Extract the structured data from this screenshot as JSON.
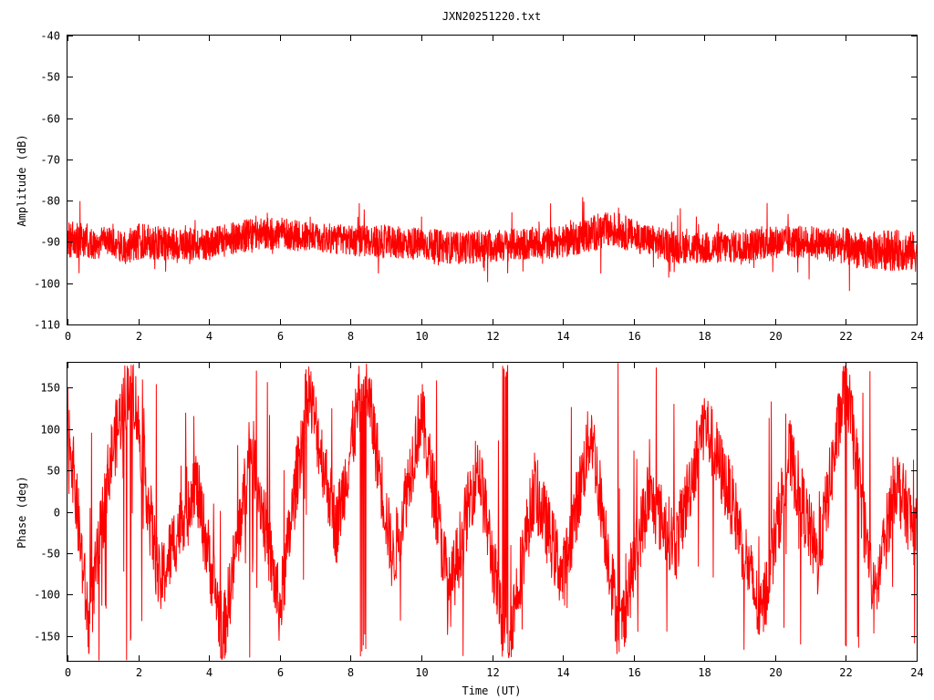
{
  "chart_data": [
    {
      "type": "line",
      "title": "JXN20251220.txt",
      "xlabel": "",
      "ylabel": "Amplitude (dB)",
      "xlim": [
        0,
        24
      ],
      "ylim": [
        -110,
        -40
      ],
      "xticks": [
        "0",
        "2",
        "4",
        "6",
        "8",
        "10",
        "12",
        "14",
        "16",
        "18",
        "20",
        "22",
        "24"
      ],
      "yticks": [
        "-40",
        "-50",
        "-60",
        "-70",
        "-80",
        "-90",
        "-100",
        "-110"
      ],
      "grid": false,
      "series_color": "#ff0000",
      "series": [
        {
          "name": "",
          "x": [
            0,
            0.5,
            0.9,
            1.0,
            1.5,
            2,
            3,
            4,
            5,
            6,
            7,
            8,
            9,
            10,
            11,
            12,
            13,
            14,
            15,
            15.5,
            16,
            17,
            18,
            19,
            20,
            21,
            22,
            22.5,
            23,
            23.5,
            24
          ],
          "center": [
            -89.5,
            -89.5,
            -91.5,
            -88.5,
            -91.5,
            -90,
            -90.5,
            -90.5,
            -88.5,
            -88,
            -89,
            -89.5,
            -90,
            -90.5,
            -91.5,
            -91,
            -90.5,
            -90,
            -87.5,
            -87,
            -88.5,
            -91,
            -91.5,
            -91,
            -90,
            -90,
            -91,
            -92.5,
            -92,
            -92,
            -92.5
          ],
          "spread": [
            4.5,
            4.5,
            3,
            3,
            4,
            4.5,
            4,
            4,
            4,
            4,
            3.5,
            4,
            4,
            4,
            4,
            4,
            4,
            4,
            4.5,
            4.5,
            4,
            4,
            4,
            4,
            4,
            4,
            4.5,
            4.5,
            5,
            5,
            5
          ]
        }
      ]
    },
    {
      "type": "line",
      "title": "",
      "xlabel": "Time (UT)",
      "ylabel": "Phase (deg)",
      "xlim": [
        0,
        24
      ],
      "ylim": [
        -180,
        180
      ],
      "xticks": [
        "0",
        "2",
        "4",
        "6",
        "8",
        "10",
        "12",
        "14",
        "16",
        "18",
        "20",
        "22",
        "24"
      ],
      "yticks": [
        "150",
        "100",
        "50",
        "0",
        "-50",
        "-100",
        "-150"
      ],
      "ytick_values": [
        150,
        100,
        50,
        0,
        -50,
        -100,
        -150
      ],
      "grid": false,
      "series_color": "#ff0000",
      "series": [
        {
          "name": "",
          "wrapped": true,
          "x": [
            0,
            0.6,
            1.2,
            1.8,
            2.6,
            3.6,
            4.4,
            5.2,
            6.0,
            6.8,
            7.6,
            8.4,
            9.2,
            10.0,
            10.8,
            11.6,
            12.4,
            13.2,
            14.0,
            14.8,
            15.6,
            16.4,
            17.2,
            18.0,
            18.8,
            19.6,
            20.4,
            21.2,
            22.0,
            22.8,
            23.4,
            24
          ],
          "y": [
            120,
            -140,
            60,
            170,
            -90,
            40,
            -150,
            80,
            -120,
            150,
            -20,
            170,
            -60,
            120,
            -100,
            60,
            -170,
            30,
            -80,
            100,
            -150,
            20,
            -40,
            110,
            10,
            -130,
            70,
            -60,
            160,
            -110,
            40,
            -30
          ]
        }
      ]
    }
  ]
}
